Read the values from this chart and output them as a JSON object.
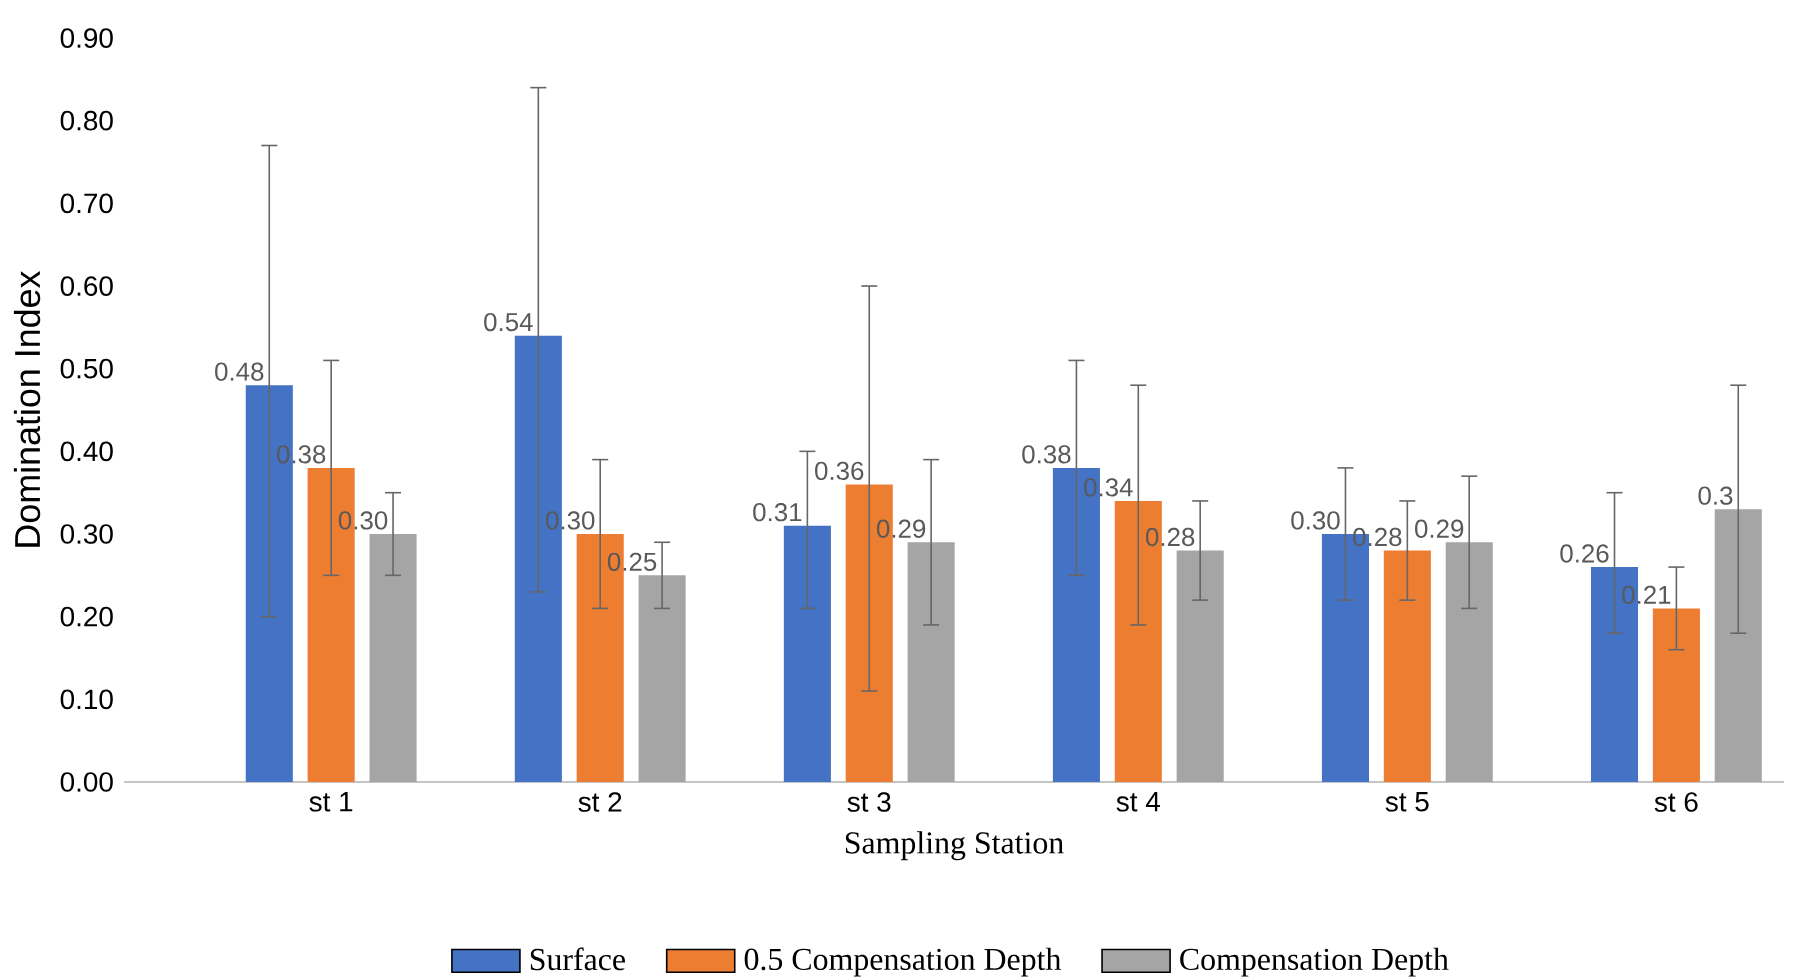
{
  "chart_data": {
    "type": "bar",
    "xlabel": "Sampling Station",
    "ylabel": "Domination Index",
    "categories": [
      "st 1",
      "st 2",
      "st 3",
      "st 4",
      "st 5",
      "st 6"
    ],
    "series": [
      {
        "name": "Surface",
        "color": "#4472c4",
        "values": [
          0.48,
          0.54,
          0.31,
          0.38,
          0.3,
          0.26
        ],
        "value_labels": [
          "0.48",
          "0.54",
          "0.31",
          "0.38",
          "0.30",
          "0.26"
        ],
        "errors": [
          [
            0.2,
            0.77
          ],
          [
            0.23,
            0.84
          ],
          [
            0.21,
            0.4
          ],
          [
            0.25,
            0.51
          ],
          [
            0.22,
            0.38
          ],
          [
            0.18,
            0.35
          ]
        ]
      },
      {
        "name": "0.5 Compensation Depth",
        "color": "#ed7d31",
        "values": [
          0.38,
          0.3,
          0.36,
          0.34,
          0.28,
          0.21
        ],
        "value_labels": [
          "0.38",
          "0.30",
          "0.36",
          "0.34",
          "0.28",
          "0.21"
        ],
        "errors": [
          [
            0.25,
            0.51
          ],
          [
            0.21,
            0.39
          ],
          [
            0.11,
            0.6
          ],
          [
            0.19,
            0.48
          ],
          [
            0.22,
            0.34
          ],
          [
            0.16,
            0.26
          ]
        ]
      },
      {
        "name": "Compensation Depth",
        "color": "#a5a5a5",
        "values": [
          0.3,
          0.25,
          0.29,
          0.28,
          0.29,
          0.33
        ],
        "value_labels": [
          "0.30",
          "0.25",
          "0.29",
          "0.28",
          "0.29",
          "0.3"
        ],
        "errors": [
          [
            0.25,
            0.35
          ],
          [
            0.21,
            0.29
          ],
          [
            0.19,
            0.39
          ],
          [
            0.22,
            0.34
          ],
          [
            0.21,
            0.37
          ],
          [
            0.18,
            0.48
          ]
        ]
      }
    ],
    "ylim": [
      0,
      0.9
    ],
    "yticks": [
      {
        "value": 0,
        "label": "0.00"
      },
      {
        "value": 0.1,
        "label": "0.10"
      },
      {
        "value": 0.2,
        "label": "0.20"
      },
      {
        "value": 0.3,
        "label": "0.30"
      },
      {
        "value": 0.4,
        "label": "0.40"
      },
      {
        "value": 0.5,
        "label": "0.50"
      },
      {
        "value": 0.6,
        "label": "0.60"
      },
      {
        "value": 0.7,
        "label": "0.70"
      },
      {
        "value": 0.8,
        "label": "0.80"
      },
      {
        "value": 0.9,
        "label": "0.90"
      }
    ],
    "legend": "bottom"
  }
}
